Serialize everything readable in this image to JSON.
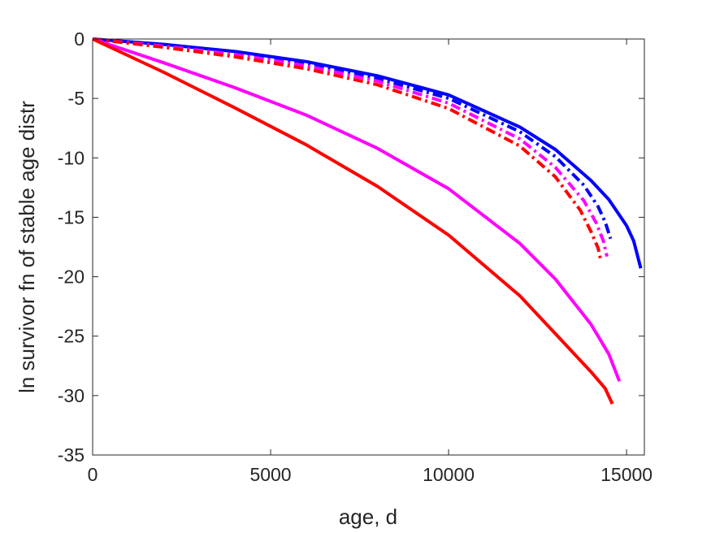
{
  "chart_data": {
    "type": "line",
    "title": "",
    "xlabel": "age, d",
    "ylabel": "ln survivor fn of stable age distr",
    "xlim": [
      0,
      15500
    ],
    "ylim": [
      -35,
      0
    ],
    "xticks": [
      0,
      5000,
      10000,
      15000
    ],
    "yticks": [
      0,
      -5,
      -10,
      -15,
      -20,
      -25,
      -30,
      -35
    ],
    "xtick_labels": [
      "0",
      "5000",
      "10000",
      "15000"
    ],
    "ytick_labels": [
      "0",
      "-5",
      "-10",
      "-15",
      "-20",
      "-25",
      "-30",
      "-35"
    ],
    "grid": false,
    "legend": "none",
    "series": [
      {
        "color": "#0000ff",
        "style": "solid",
        "x": [
          0,
          2000,
          4000,
          6000,
          8000,
          10000,
          12000,
          13000,
          14000,
          14500,
          15000,
          15200,
          15400
        ],
        "y": [
          0,
          -0.45,
          -1.05,
          -1.9,
          -3.1,
          -4.7,
          -7.4,
          -9.3,
          -11.9,
          -13.5,
          -15.7,
          -17.0,
          -19.3
        ]
      },
      {
        "color": "#0000ff",
        "style": "dashdot",
        "x": [
          0,
          2000,
          4000,
          6000,
          8000,
          10000,
          12000,
          13000,
          13800,
          14200,
          14400,
          14550
        ],
        "y": [
          0,
          -0.5,
          -1.15,
          -2.05,
          -3.3,
          -5.0,
          -7.8,
          -9.9,
          -12.3,
          -14.1,
          -15.4,
          -16.8
        ]
      },
      {
        "color": "#ff00ff",
        "style": "dashdot",
        "x": [
          0,
          2000,
          4000,
          6000,
          8000,
          10000,
          12000,
          13000,
          13800,
          14150,
          14350,
          14450
        ],
        "y": [
          0,
          -0.6,
          -1.3,
          -2.25,
          -3.55,
          -5.4,
          -8.4,
          -10.8,
          -13.6,
          -15.5,
          -17.0,
          -18.3
        ]
      },
      {
        "color": "#ff0000",
        "style": "dashdot",
        "x": [
          0,
          2000,
          4000,
          6000,
          8000,
          10000,
          12000,
          13000,
          13700,
          14000,
          14200,
          14280
        ],
        "y": [
          0,
          -0.7,
          -1.5,
          -2.5,
          -3.85,
          -5.85,
          -9.0,
          -11.6,
          -14.4,
          -16.2,
          -17.6,
          -18.7
        ]
      },
      {
        "color": "#ff00ff",
        "style": "solid",
        "x": [
          0,
          1000,
          2000,
          4000,
          6000,
          8000,
          10000,
          12000,
          13000,
          14000,
          14500,
          14800
        ],
        "y": [
          0,
          -1.0,
          -2.0,
          -4.1,
          -6.4,
          -9.2,
          -12.6,
          -17.2,
          -20.2,
          -24.0,
          -26.5,
          -28.8
        ]
      },
      {
        "color": "#ff0000",
        "style": "solid",
        "x": [
          0,
          1000,
          2000,
          4000,
          6000,
          8000,
          10000,
          12000,
          13000,
          14000,
          14400,
          14600
        ],
        "y": [
          0,
          -1.4,
          -2.8,
          -5.8,
          -8.9,
          -12.4,
          -16.5,
          -21.6,
          -24.8,
          -28.0,
          -29.4,
          -30.7
        ]
      }
    ]
  }
}
